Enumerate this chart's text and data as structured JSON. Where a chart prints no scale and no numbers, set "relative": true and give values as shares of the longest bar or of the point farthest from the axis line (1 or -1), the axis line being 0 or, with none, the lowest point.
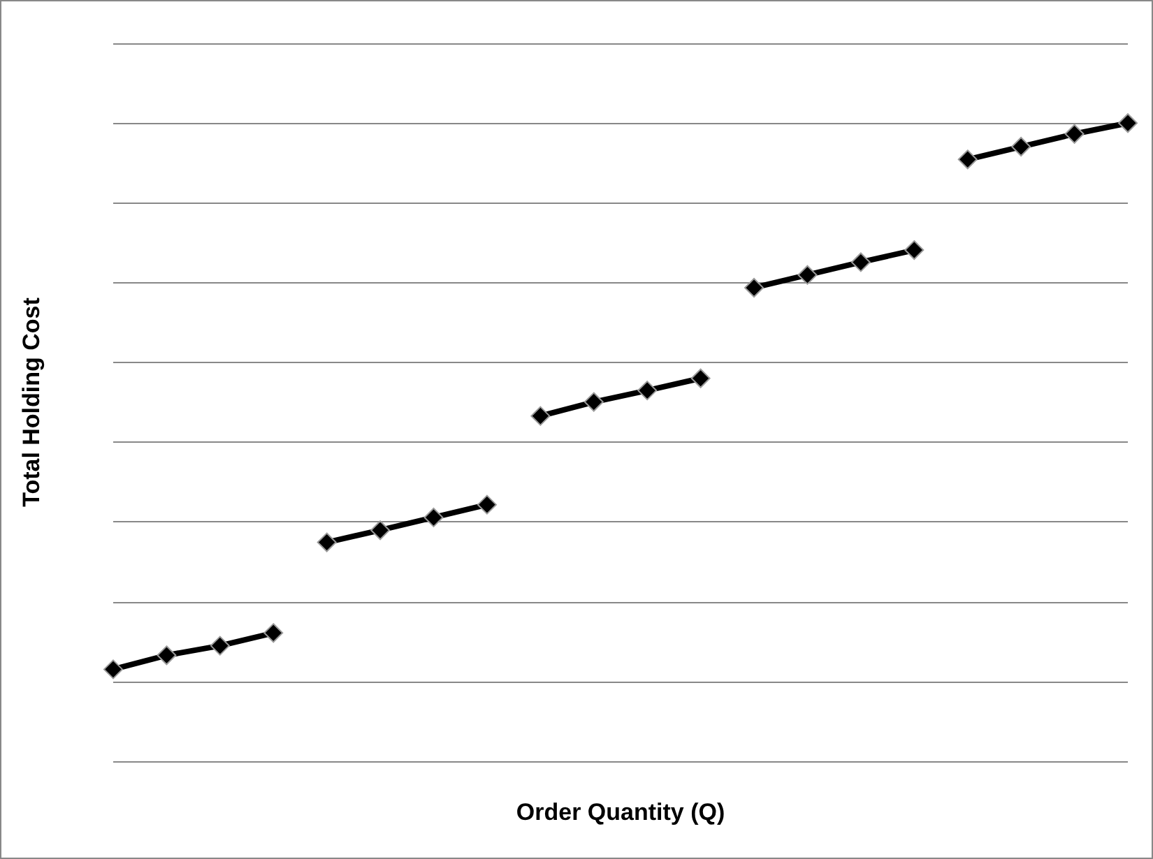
{
  "chart_data": {
    "type": "line",
    "relative": true,
    "xlabel": "Order Quantity (Q)",
    "ylabel": "Total Holding Cost",
    "categories": [
      null,
      null,
      null,
      null,
      null,
      null,
      null,
      null,
      null,
      null,
      null,
      null,
      null,
      null,
      null,
      null,
      null,
      null,
      null,
      null
    ],
    "series": [
      {
        "color": "#000000",
        "values": [
          0.144,
          0.166,
          0.181,
          0.201,
          null,
          null,
          null,
          null,
          null,
          null,
          null,
          null,
          null,
          null,
          null,
          null,
          null,
          null,
          null,
          null
        ]
      },
      {
        "color": "#000000",
        "values": [
          null,
          null,
          null,
          null,
          0.343,
          0.362,
          0.382,
          0.402,
          null,
          null,
          null,
          null,
          null,
          null,
          null,
          null,
          null,
          null,
          null,
          null
        ]
      },
      {
        "color": "#000000",
        "values": [
          null,
          null,
          null,
          null,
          null,
          null,
          null,
          null,
          0.541,
          0.563,
          0.581,
          0.6,
          null,
          null,
          null,
          null,
          null,
          null,
          null,
          null
        ]
      },
      {
        "color": "#000000",
        "values": [
          null,
          null,
          null,
          null,
          null,
          null,
          null,
          null,
          null,
          null,
          null,
          null,
          0.742,
          0.762,
          0.782,
          0.801,
          null,
          null,
          null,
          null
        ]
      },
      {
        "color": "#000000",
        "values": [
          null,
          null,
          null,
          null,
          null,
          null,
          null,
          null,
          null,
          null,
          null,
          null,
          null,
          null,
          null,
          null,
          0.943,
          0.963,
          0.983,
          1
        ]
      }
    ],
    "grid": "y",
    "marker": "diamond",
    "line_style": "solid"
  }
}
